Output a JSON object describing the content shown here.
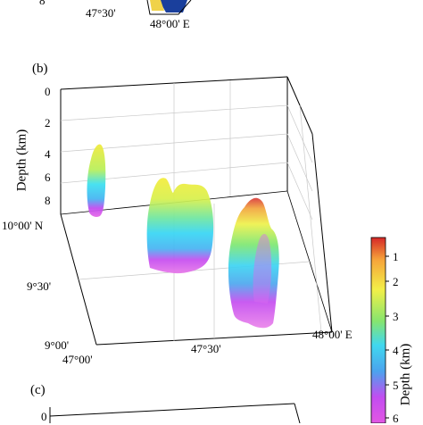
{
  "top_panel": {
    "partial_tick": "8",
    "lon_label_mid": "47°30'",
    "lon_label_right": "48°00' E"
  },
  "panel_b": {
    "label": "(b)",
    "z_axis_title": "Depth (km)",
    "z_ticks": [
      "0",
      "2",
      "4",
      "6",
      "8"
    ],
    "lat_ticks": [
      "10°00' N",
      "9°30'",
      "9°00'"
    ],
    "lon_ticks": [
      "47°00'",
      "47°30'",
      "48°00' E"
    ]
  },
  "colorbar": {
    "title": "Depth (km)",
    "ticks": [
      "1",
      "2",
      "3",
      "4",
      "5",
      "6"
    ],
    "colors": [
      "#d62728",
      "#f4a33a",
      "#f4f04a",
      "#7ce56a",
      "#3fd6f0",
      "#4aa9ef",
      "#c94ef0",
      "#e055e6"
    ]
  },
  "panel_c": {
    "label": "(c)",
    "partial_tick": "0"
  }
}
